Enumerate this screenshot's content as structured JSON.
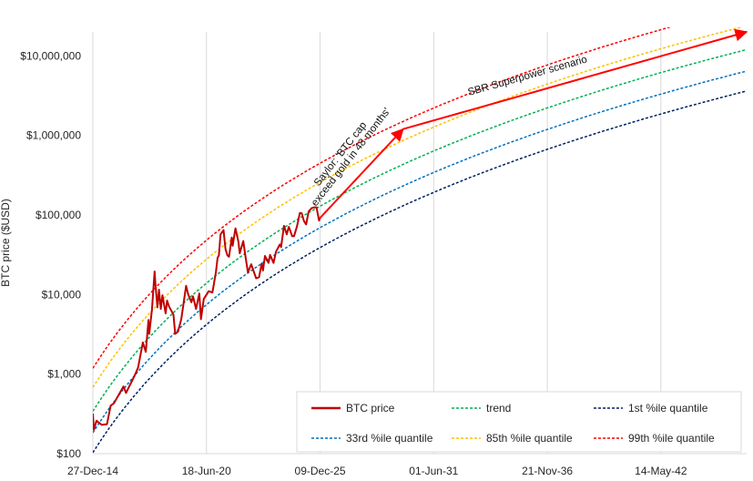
{
  "chart_data": {
    "type": "line",
    "title": "",
    "ylabel": "BTC price ($USD)",
    "xlabel": "",
    "yscale": "log",
    "ylim": [
      100,
      20000000
    ],
    "xlim": [
      "2014-12-27",
      "2046-07-01"
    ],
    "grid": "vertical",
    "x_ticks": [
      {
        "date": "2014-12-27",
        "label": "27-Dec-14"
      },
      {
        "date": "2020-06-18",
        "label": "18-Jun-20"
      },
      {
        "date": "2025-12-09",
        "label": "09-Dec-25"
      },
      {
        "date": "2031-06-01",
        "label": "01-Jun-31"
      },
      {
        "date": "2036-11-21",
        "label": "21-Nov-36"
      },
      {
        "date": "2042-05-14",
        "label": "14-May-42"
      }
    ],
    "y_ticks": [
      {
        "value": 100,
        "label": "$100"
      },
      {
        "value": 1000,
        "label": "$1,000"
      },
      {
        "value": 10000,
        "label": "$10,000"
      },
      {
        "value": 100000,
        "label": "$100,000"
      },
      {
        "value": 1000000,
        "label": "$1,000,000"
      },
      {
        "value": 10000000,
        "label": "$10,000,000"
      }
    ],
    "legend_position": "bottom-right",
    "series": [
      {
        "name": "BTC price",
        "color": "#c00000",
        "style": "solid",
        "points": [
          [
            "2014-12-27",
            320
          ],
          [
            "2015-01-14",
            200
          ],
          [
            "2015-03-01",
            260
          ],
          [
            "2015-06-01",
            230
          ],
          [
            "2015-09-01",
            235
          ],
          [
            "2015-11-05",
            400
          ],
          [
            "2016-01-01",
            430
          ],
          [
            "2016-06-17",
            700
          ],
          [
            "2016-08-01",
            580
          ],
          [
            "2016-12-31",
            960
          ],
          [
            "2017-03-01",
            1200
          ],
          [
            "2017-05-25",
            2500
          ],
          [
            "2017-07-15",
            1900
          ],
          [
            "2017-09-01",
            4800
          ],
          [
            "2017-09-15",
            3200
          ],
          [
            "2017-11-01",
            6500
          ],
          [
            "2017-12-17",
            19500
          ],
          [
            "2018-01-01",
            13500
          ],
          [
            "2018-02-06",
            6900
          ],
          [
            "2018-03-05",
            11500
          ],
          [
            "2018-04-06",
            6600
          ],
          [
            "2018-05-05",
            9800
          ],
          [
            "2018-06-29",
            5800
          ],
          [
            "2018-07-25",
            8400
          ],
          [
            "2018-09-01",
            7000
          ],
          [
            "2018-11-15",
            5600
          ],
          [
            "2018-12-15",
            3200
          ],
          [
            "2019-02-01",
            3400
          ],
          [
            "2019-04-02",
            4900
          ],
          [
            "2019-06-26",
            12900
          ],
          [
            "2019-08-01",
            10000
          ],
          [
            "2019-09-26",
            8000
          ],
          [
            "2019-10-26",
            9500
          ],
          [
            "2019-12-17",
            6600
          ],
          [
            "2020-02-13",
            10300
          ],
          [
            "2020-03-13",
            4900
          ],
          [
            "2020-05-01",
            8800
          ],
          [
            "2020-07-27",
            11000
          ],
          [
            "2020-10-01",
            10600
          ],
          [
            "2020-11-30",
            19000
          ],
          [
            "2020-12-31",
            29000
          ],
          [
            "2021-01-22",
            31000
          ],
          [
            "2021-02-21",
            57000
          ],
          [
            "2021-04-14",
            64500
          ],
          [
            "2021-05-19",
            37000
          ],
          [
            "2021-06-22",
            31000
          ],
          [
            "2021-07-20",
            29800
          ],
          [
            "2021-09-06",
            52000
          ],
          [
            "2021-09-21",
            41000
          ],
          [
            "2021-11-10",
            68000
          ],
          [
            "2021-12-31",
            46300
          ],
          [
            "2022-01-24",
            33000
          ],
          [
            "2022-03-28",
            47000
          ],
          [
            "2022-05-12",
            28000
          ],
          [
            "2022-06-18",
            19000
          ],
          [
            "2022-08-15",
            24000
          ],
          [
            "2022-11-09",
            16000
          ],
          [
            "2022-12-31",
            16500
          ],
          [
            "2023-02-15",
            24500
          ],
          [
            "2023-03-10",
            20000
          ],
          [
            "2023-04-14",
            30500
          ],
          [
            "2023-06-15",
            25000
          ],
          [
            "2023-07-13",
            31500
          ],
          [
            "2023-09-11",
            25000
          ],
          [
            "2023-10-25",
            34500
          ],
          [
            "2023-12-31",
            42500
          ],
          [
            "2024-01-22",
            39500
          ],
          [
            "2024-03-14",
            73000
          ],
          [
            "2024-05-01",
            57000
          ],
          [
            "2024-06-07",
            71000
          ],
          [
            "2024-08-05",
            54000
          ],
          [
            "2024-09-06",
            54000
          ],
          [
            "2024-10-29",
            72000
          ],
          [
            "2024-12-17",
            106000
          ],
          [
            "2025-01-20",
            105000
          ],
          [
            "2025-02-28",
            84000
          ],
          [
            "2025-04-07",
            76000
          ],
          [
            "2025-05-22",
            111000
          ],
          [
            "2025-07-14",
            122000
          ],
          [
            "2025-08-14",
            124000
          ],
          [
            "2025-10-06",
            125000
          ],
          [
            "2025-11-21",
            85000
          ],
          [
            "2025-12-09",
            92000
          ]
        ]
      },
      {
        "name": "trend",
        "color": "#00b050",
        "style": "dashed",
        "offset_dex": 0
      },
      {
        "name": "1st %ile quantile",
        "color": "#002060",
        "style": "dashed",
        "offset_dex": -0.52
      },
      {
        "name": "33rd %ile quantile",
        "color": "#0070c0",
        "style": "dashed",
        "offset_dex": -0.27
      },
      {
        "name": "85th %ile quantile",
        "color": "#ffc000",
        "style": "dashed",
        "offset_dex": 0.3
      },
      {
        "name": "99th %ile quantile",
        "color": "#ff0000",
        "style": "dashed",
        "offset_dex": 0.54
      }
    ],
    "annotations": [
      {
        "text": "Saylor: 'BTC cap",
        "color": "#111111"
      },
      {
        "text": "exceed gold in 48 months'",
        "color": "#111111"
      },
      {
        "text": "SBR Superpower scenario",
        "color": "#111111"
      }
    ],
    "arrows": [
      {
        "from": [
          "2025-12-09",
          92000
        ],
        "to": [
          "2029-12-09",
          1200000
        ],
        "color": "#ff0000"
      },
      {
        "from": [
          "2029-12-09",
          1200000
        ],
        "to": [
          "2046-07-01",
          20000000
        ],
        "color": "#ff0000"
      }
    ]
  }
}
